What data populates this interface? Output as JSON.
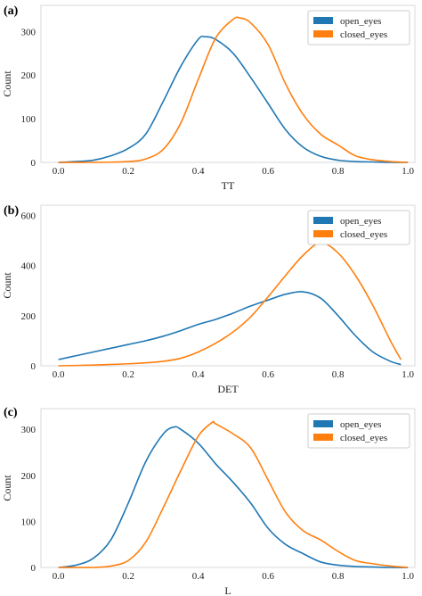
{
  "chart_data": [
    {
      "type": "line",
      "panel_label": "(a)",
      "xlabel": "TT",
      "ylabel": "Count",
      "xlim": [
        -0.05,
        1.02
      ],
      "ylim": [
        0,
        360
      ],
      "xticks": [
        "0.0",
        "0.2",
        "0.4",
        "0.6",
        "0.8",
        "1.0"
      ],
      "yticks": [
        "0",
        "100",
        "200",
        "300"
      ],
      "grid": false,
      "legend_position": "top-right",
      "series": [
        {
          "name": "open_eyes",
          "color": "#1f77b4",
          "x": [
            0.0,
            0.05,
            0.1,
            0.15,
            0.2,
            0.25,
            0.3,
            0.35,
            0.4,
            0.42,
            0.45,
            0.5,
            0.55,
            0.6,
            0.65,
            0.7,
            0.75,
            0.8,
            0.85,
            0.9,
            0.95,
            1.0
          ],
          "y": [
            0,
            2,
            5,
            15,
            32,
            65,
            140,
            220,
            282,
            288,
            282,
            250,
            195,
            135,
            75,
            35,
            14,
            5,
            2,
            1,
            0,
            0
          ]
        },
        {
          "name": "closed_eyes",
          "color": "#ff7f0e",
          "x": [
            0.0,
            0.1,
            0.2,
            0.25,
            0.3,
            0.35,
            0.4,
            0.45,
            0.5,
            0.52,
            0.55,
            0.6,
            0.65,
            0.7,
            0.75,
            0.8,
            0.85,
            0.9,
            0.95,
            1.0
          ],
          "y": [
            0,
            0,
            2,
            8,
            30,
            90,
            190,
            285,
            328,
            331,
            320,
            270,
            180,
            110,
            65,
            40,
            15,
            6,
            2,
            0
          ]
        }
      ]
    },
    {
      "type": "line",
      "panel_label": "(b)",
      "xlabel": "DET",
      "ylabel": "Count",
      "xlim": [
        -0.05,
        1.02
      ],
      "ylim": [
        0,
        640
      ],
      "xticks": [
        "0.0",
        "0.2",
        "0.4",
        "0.6",
        "0.8",
        "1.0"
      ],
      "yticks": [
        "0",
        "200",
        "400",
        "600"
      ],
      "grid": false,
      "legend_position": "top-right",
      "series": [
        {
          "name": "open_eyes",
          "color": "#1f77b4",
          "x": [
            0.0,
            0.05,
            0.1,
            0.15,
            0.2,
            0.25,
            0.3,
            0.35,
            0.4,
            0.45,
            0.5,
            0.55,
            0.6,
            0.65,
            0.7,
            0.75,
            0.8,
            0.85,
            0.9,
            0.95,
            0.98
          ],
          "y": [
            25,
            40,
            55,
            70,
            85,
            100,
            118,
            140,
            165,
            185,
            210,
            238,
            262,
            285,
            295,
            270,
            200,
            120,
            55,
            18,
            5
          ]
        },
        {
          "name": "closed_eyes",
          "color": "#ff7f0e",
          "x": [
            0.0,
            0.1,
            0.2,
            0.25,
            0.3,
            0.35,
            0.4,
            0.45,
            0.5,
            0.55,
            0.6,
            0.65,
            0.7,
            0.75,
            0.8,
            0.85,
            0.9,
            0.95,
            0.98
          ],
          "y": [
            0,
            3,
            8,
            12,
            18,
            30,
            55,
            90,
            135,
            195,
            275,
            360,
            440,
            490,
            450,
            360,
            240,
            100,
            25
          ]
        }
      ]
    },
    {
      "type": "line",
      "panel_label": "(c)",
      "xlabel": "L",
      "ylabel": "Count",
      "xlim": [
        -0.05,
        1.02
      ],
      "ylim": [
        0,
        345
      ],
      "xticks": [
        "0.0",
        "0.2",
        "0.4",
        "0.6",
        "0.8",
        "1.0"
      ],
      "yticks": [
        "0",
        "100",
        "200",
        "300"
      ],
      "grid": false,
      "legend_position": "top-right",
      "series": [
        {
          "name": "open_eyes",
          "color": "#1f77b4",
          "x": [
            0.0,
            0.05,
            0.1,
            0.15,
            0.2,
            0.25,
            0.3,
            0.33,
            0.35,
            0.4,
            0.45,
            0.5,
            0.55,
            0.6,
            0.65,
            0.7,
            0.75,
            0.8,
            0.85,
            0.9,
            0.95,
            1.0
          ],
          "y": [
            0,
            5,
            20,
            60,
            140,
            230,
            290,
            305,
            300,
            270,
            225,
            185,
            140,
            85,
            50,
            30,
            12,
            5,
            2,
            1,
            0,
            0
          ]
        },
        {
          "name": "closed_eyes",
          "color": "#ff7f0e",
          "x": [
            0.0,
            0.1,
            0.15,
            0.2,
            0.25,
            0.3,
            0.35,
            0.4,
            0.44,
            0.45,
            0.5,
            0.55,
            0.6,
            0.65,
            0.7,
            0.75,
            0.8,
            0.85,
            0.9,
            0.95,
            1.0
          ],
          "y": [
            0,
            0,
            3,
            15,
            55,
            130,
            210,
            285,
            315,
            312,
            290,
            260,
            190,
            120,
            80,
            60,
            35,
            15,
            8,
            3,
            0
          ]
        }
      ]
    }
  ]
}
